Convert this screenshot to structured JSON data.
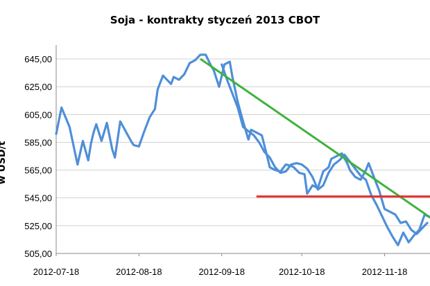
{
  "chart_data": {
    "type": "line",
    "title": "Soja - kontrakty styczeń 2013 CBOT",
    "ylabel": "w USD/t",
    "xlabel": "",
    "ylim": [
      505,
      655
    ],
    "yticks": [
      505,
      525,
      545,
      565,
      585,
      605,
      625,
      645
    ],
    "ytick_labels": [
      "505,00",
      "525,00",
      "545,00",
      "565,00",
      "585,00",
      "605,00",
      "625,00",
      "645,00"
    ],
    "xlim": [
      "2012-07-18",
      "2012-12-05"
    ],
    "xticks": [
      "2012-07-18",
      "2012-08-18",
      "2012-09-18",
      "2012-10-18",
      "2012-11-18"
    ],
    "grid": true,
    "legend": "none",
    "series": [
      {
        "color": "#4f8fd8",
        "x": [
          "2012-07-18",
          "2012-07-20",
          "2012-07-23",
          "2012-07-26",
          "2012-07-28",
          "2012-07-30",
          "2012-07-31",
          "2012-08-01",
          "2012-08-02",
          "2012-08-04",
          "2012-08-06",
          "2012-08-08",
          "2012-08-09",
          "2012-08-11",
          "2012-08-13",
          "2012-08-15",
          "2012-08-16",
          "2012-08-18",
          "2012-08-20",
          "2012-08-22",
          "2012-08-24",
          "2012-08-25",
          "2012-08-27",
          "2012-08-29",
          "2012-08-30",
          "2012-08-31",
          "2012-09-02",
          "2012-09-04",
          "2012-09-06",
          "2012-09-08",
          "2012-09-10",
          "2012-09-12",
          "2012-09-14",
          "2012-09-15",
          "2012-09-17",
          "2012-09-19",
          "2012-09-21",
          "2012-09-22",
          "2012-09-24",
          "2012-09-26",
          "2012-09-28",
          "2012-09-29",
          "2012-10-01",
          "2012-10-03",
          "2012-10-05",
          "2012-10-06",
          "2012-10-08",
          "2012-10-10",
          "2012-10-12",
          "2012-10-14",
          "2012-10-15",
          "2012-10-17",
          "2012-10-19",
          "2012-10-20",
          "2012-10-22",
          "2012-10-24",
          "2012-10-26",
          "2012-10-28",
          "2012-10-29",
          "2012-10-31",
          "2012-11-02",
          "2012-11-04",
          "2012-11-05",
          "2012-11-07",
          "2012-11-09",
          "2012-11-11",
          "2012-11-12",
          "2012-11-14",
          "2012-11-16",
          "2012-11-18",
          "2012-11-20",
          "2012-11-22",
          "2012-11-24",
          "2012-11-26",
          "2012-11-28",
          "2012-11-30",
          "2012-12-02",
          "2012-12-04"
        ],
        "values": [
          591,
          610,
          596,
          569,
          586,
          572,
          584,
          592,
          598,
          586,
          599,
          580,
          574,
          600,
          593,
          586,
          583,
          582,
          593,
          603,
          609,
          623,
          633,
          629,
          627,
          632,
          630,
          634,
          642,
          644,
          648,
          648,
          640,
          637,
          625,
          641,
          643,
          632,
          614,
          600,
          587,
          594,
          592,
          590,
          575,
          567,
          565,
          564,
          569,
          568,
          567,
          563,
          562,
          548,
          554,
          552,
          564,
          567,
          573,
          575,
          577,
          570,
          565,
          560,
          558,
          565,
          570,
          560,
          550,
          537,
          535,
          533,
          527,
          528,
          522,
          519,
          523,
          527
        ]
      },
      {
        "color": "#4f8fd8",
        "x": [
          "2012-09-18",
          "2012-09-20",
          "2012-09-22",
          "2012-09-24",
          "2012-09-26",
          "2012-09-28",
          "2012-09-30",
          "2012-10-02",
          "2012-10-04",
          "2012-10-06",
          "2012-10-08",
          "2012-10-10",
          "2012-10-12",
          "2012-10-14",
          "2012-10-16",
          "2012-10-18",
          "2012-10-20",
          "2012-10-22",
          "2012-10-24",
          "2012-10-26",
          "2012-10-28",
          "2012-10-30",
          "2012-11-01",
          "2012-11-03",
          "2012-11-05",
          "2012-11-07",
          "2012-11-09",
          "2012-11-11",
          "2012-11-13",
          "2012-11-15",
          "2012-11-17",
          "2012-11-19",
          "2012-11-21",
          "2012-11-23",
          "2012-11-25",
          "2012-11-27",
          "2012-11-29",
          "2012-12-01",
          "2012-12-03",
          "2012-12-05"
        ],
        "values": [
          641,
          630,
          620,
          610,
          596,
          593,
          590,
          585,
          578,
          574,
          567,
          563,
          564,
          569,
          570,
          569,
          566,
          560,
          551,
          554,
          563,
          569,
          572,
          576,
          571,
          566,
          561,
          558,
          547,
          540,
          532,
          524,
          517,
          511,
          520,
          513,
          518,
          522,
          533,
          531
        ]
      }
    ],
    "trendlines": [
      {
        "color": "#3cb33c",
        "x": [
          "2012-09-10",
          "2012-12-05"
        ],
        "values": [
          645,
          531
        ]
      },
      {
        "color": "#e52d2d",
        "x": [
          "2012-10-01",
          "2012-12-05"
        ],
        "values": [
          546,
          546
        ]
      }
    ]
  }
}
